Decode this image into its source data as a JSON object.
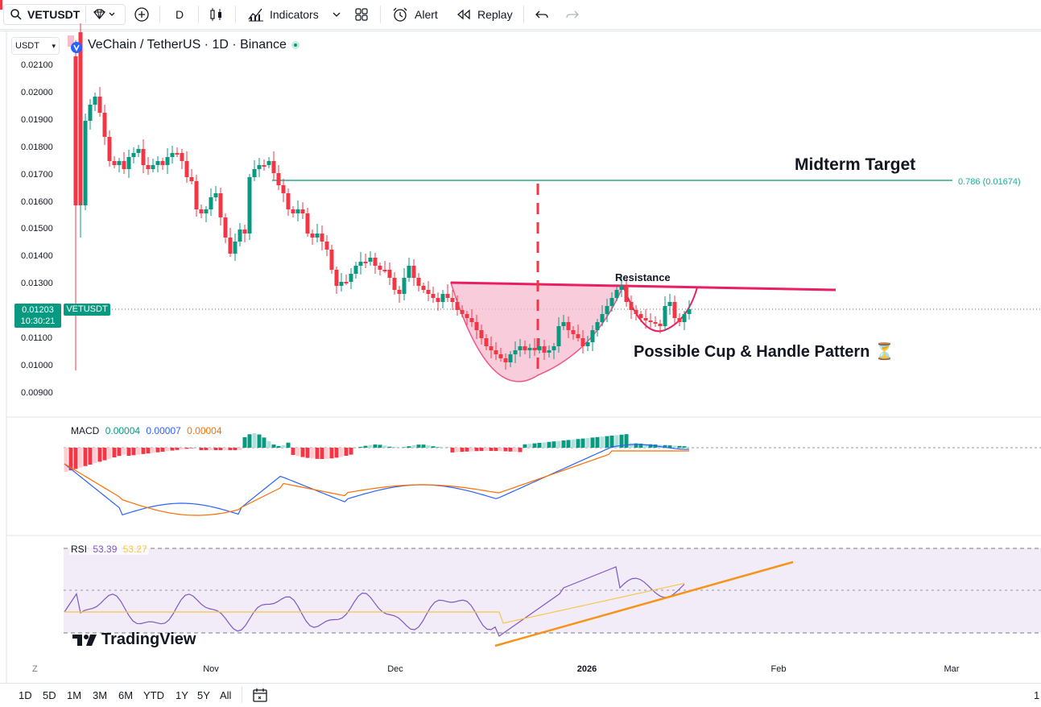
{
  "toolbar": {
    "symbol": "VETUSDT",
    "interval": "D",
    "indicators_label": "Indicators",
    "alert_label": "Alert",
    "replay_label": "Replay"
  },
  "chart": {
    "title": "VeChain / TetherUS · 1D · Binance",
    "currency": "USDT",
    "price_label": "0.01203",
    "countdown": "10:30:21",
    "symbol_tag": "VETUSDT",
    "price_ticks": [
      "0.02100",
      "0.02000",
      "0.01900",
      "0.01800",
      "0.01700",
      "0.01600",
      "0.01500",
      "0.01400",
      "0.01300",
      "0.01100",
      "0.01000",
      "0.00900"
    ],
    "fib_label": "0.786 (0.01674)",
    "annotations": {
      "target": "Midterm Target",
      "resistance": "Resistance",
      "pattern": "Possible Cup & Handle Pattern ⏳"
    },
    "time_axis": {
      "z": "Z",
      "labels": [
        "Nov",
        "Dec",
        "2026",
        "Feb",
        "Mar"
      ]
    },
    "watermark": "TradingView"
  },
  "macd": {
    "name": "MACD",
    "v1": "0.00004",
    "v2": "0.00007",
    "v3": "0.00004",
    "colors": {
      "v1": "#089981",
      "v2": "#2962ff",
      "v3": "#ff6d00"
    }
  },
  "rsi": {
    "name": "RSI",
    "v1": "53.39",
    "v2": "53.27",
    "colors": {
      "v1": "#7e57c2",
      "v2": "#f7c64c"
    }
  },
  "ranges": [
    "1D",
    "5D",
    "1M",
    "3M",
    "6M",
    "YTD",
    "1Y",
    "5Y",
    "All"
  ],
  "bottom_right": "1",
  "colors": {
    "up": "#089981",
    "down": "#f23645",
    "fib": "#22ab94",
    "resistance": "#e91e63",
    "trend": "#f7931a"
  }
}
